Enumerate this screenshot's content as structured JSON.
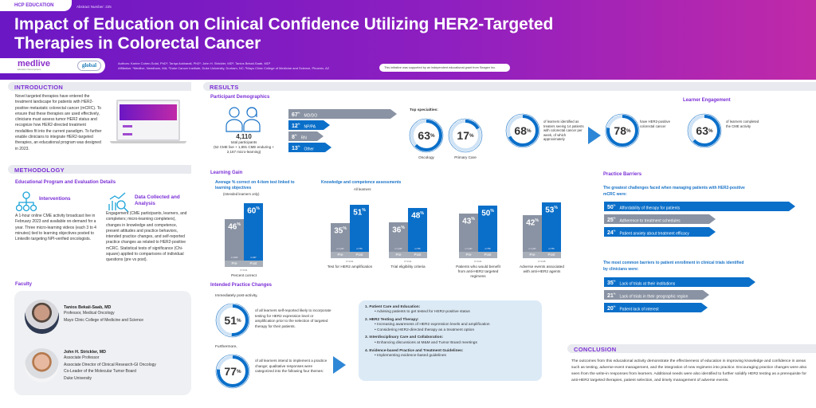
{
  "header": {
    "badge": "HCP EDUCATION",
    "abstract": "Abstract Number: 225",
    "title": "Impact of Education on Clinical Confidence Utilizing HER2-Targeted Therapies in Colorectal Cancer",
    "logo_medlive": "medlive",
    "logo_medlive_tagline": "Education that empowers",
    "logo_global": "global",
    "authors": "Authors: Karine Cohen-Solal, PhD¹; Tariqa Ackbarali, PhD¹; John H. Strickler, MD²; Tanios Bekaii-Saab, MD³",
    "affiliation": "Affiliation: ¹Medlive, Needham, MA; ²Duke Cancer Institute, Duke University, Durham, NC; ³Mayo Clinic College of Medicine and Science, Phoenix, AZ",
    "grant": "This initiative was supported by an independent educational grant from Seagen Inc."
  },
  "introduction": {
    "heading": "INTRODUCTION",
    "text": "Novel targeted therapies have entered the treatment landscape for patients with HER2-positive metastatic colorectal cancer (mCRC). To ensure that these therapies are used effectively, clinicians must assess tumor HER2 status and recognize how HER2-directed treatment modalities fit into the current paradigm. To further enable clinicians to integrate HER2-targeted therapies, an educational program was designed in 2023."
  },
  "methodology": {
    "heading": "METHODOLOGY",
    "subheading": "Educational Program and Evaluation Details",
    "interventions_title": "Interventions",
    "interventions_text": "A 1-hour online CME activity broadcast live in February 2023 and available on-demand for a year. Three micro-learning videos (each 3 to 4 minutes) tied to learning objectives posted to LinkedIn targeting NPI-verified oncologists.",
    "data_title": "Data Collected and Analysis",
    "data_text": "Engagement (CME participants, learners, and completers; micro-learning completers), changes in knowledge and competence, present attitudes and practice behaviors, intended practice changes, and self-reported practice changes as related to HER2-positive mCRC. Statistical tests of significance (Chi-square) applied to comparisons of individual questions (pre vs post)."
  },
  "faculty": {
    "heading": "Faculty",
    "members": [
      {
        "name": "Tanios Bekaii-Saab, MD",
        "lines": [
          "Professor, Medical Oncology",
          "Mayo Clinic College of Medicine and Science"
        ]
      },
      {
        "name": "John H. Strickler, MD",
        "lines": [
          "Associate Professor",
          "Associate Director of Clinical Research-GI Oncology",
          "Co-Leader of the Molecular Tumor Board",
          "Duke University"
        ]
      }
    ]
  },
  "results": {
    "heading": "RESULTS",
    "demographics": {
      "heading": "Participant Demographics",
      "total": "4,110",
      "total_label": "total participants",
      "breakdown": "(52 CME live + 1,891 CME enduring + 2,167 micro-learning)",
      "professions": [
        {
          "pct": 67,
          "label": "MD/DO",
          "color": "#8a93a3"
        },
        {
          "pct": 12,
          "label": "NP/PA",
          "color": "#0a6fc9"
        },
        {
          "pct": 8,
          "label": "RN",
          "color": "#8a93a3"
        },
        {
          "pct": 13,
          "label": "Other",
          "color": "#0a6fc9"
        }
      ],
      "specialties_label": "Top specialties:",
      "specialties": [
        {
          "pct": 63,
          "label": "Oncology"
        },
        {
          "pct": 17,
          "label": "Primary Care"
        }
      ],
      "treaters": {
        "pct": 68,
        "text": "of learners identified as treaters seeing 14 patients with colorectal cancer per week, of which approximately"
      },
      "her2": {
        "pct": 78,
        "text": "have HER2-positive colorectal cancer"
      }
    },
    "engagement": {
      "heading": "Learner Engagement",
      "pct": 63,
      "text": "of learners completed the CME activity"
    },
    "learning_gain": {
      "heading": "Learning Gain",
      "avg_title": "Average % correct on 4-item test linked to learning objectives",
      "avg_note": "(Intended learners only)",
      "kc_title": "Knowledge and competence assessments",
      "kc_note": "All learners"
    },
    "intended": {
      "heading": "Intended Practice Changes",
      "intro1": "Immediately post-activity,",
      "pct1": 51,
      "text1": "of all learners self-reported likely to incorporate testing for HER2 expression level or amplification prior to the selection of targeted therapy for their patients.",
      "intro2": "Furthermore,",
      "pct2": 77,
      "text2": "of all learners intend to implement a practice change; qualitative responses were categorized into the following four themes:",
      "themes": [
        {
          "title": "1.  Patient Care and Education:",
          "bullets": [
            "Advising patients to get tested for HER2-positive status"
          ]
        },
        {
          "title": "2.  HER2 Testing and Therapy:",
          "bullets": [
            "Increasing awareness of HER2 expression levels and amplification",
            "Considering HER2-directed therapy as a treatment option"
          ]
        },
        {
          "title": "3.  Interdisciplinary Care and Collaboration:",
          "bullets": [
            "Enhancing discussions at M&M and Tumor Board meetings"
          ]
        },
        {
          "title": "4.  Evidence-based Practice and Treatment Guidelines:",
          "bullets": [
            "Implementing evidence-based guidelines"
          ]
        }
      ]
    },
    "barriers": {
      "heading": "Practice Barriers",
      "q1": "The greatest challenges faced when managing patients with HER2-positive mCRC were:",
      "items1": [
        {
          "pct": 50,
          "label": "Affordability of therapy for patients",
          "color": "#0a6fc9"
        },
        {
          "pct": 25,
          "label": "Adherence to treatment schedules",
          "color": "#8a93a3"
        },
        {
          "pct": 24,
          "label": "Patient anxiety about treatment efficacy",
          "color": "#0a6fc9"
        }
      ],
      "q2": "The most common barriers to patient enrollment in clinical trials identified by clinicians were:",
      "items2": [
        {
          "pct": 35,
          "label": "Lack of trials at their institutions",
          "color": "#0a6fc9"
        },
        {
          "pct": 21,
          "label": "Lack of trials in their geographic region",
          "color": "#8a93a3"
        },
        {
          "pct": 20,
          "label": "Patient lack of interest",
          "color": "#0a6fc9"
        }
      ]
    }
  },
  "conclusion": {
    "heading": "CONCLUSION",
    "text": "The outcomes from this educational activity demonstrate the effectiveness of education in improving knowledge and confidence in areas such as testing, adverse-event management, and the integration of new regimens into practice. Encouraging practice changes were also seen from the write-in responses from learners. Additional needs were also identified to further solidify HER2 testing as a prerequisite for anti-HER2 targeted therapies, patient selection, and timely management of adverse events."
  },
  "chart_data": {
    "type": "bar",
    "categories": [
      "Percent correct",
      "Test for HER2 amplification",
      "Trial eligibility criteria",
      "Patients who would benefit from anti-HER2 targeted regimens",
      "Adverse events associated with anti-HER2 agents"
    ],
    "series": [
      {
        "name": "Pre",
        "values": [
          46,
          35,
          36,
          43,
          42
        ],
        "n": [
          "n=1930",
          "n=1,237",
          "n=1,237",
          "n=1,237",
          "n=1,237"
        ]
      },
      {
        "name": "Post",
        "values": [
          60,
          51,
          48,
          50,
          53
        ],
        "n": [
          "n=227",
          "n=776",
          "n=776",
          "n=776",
          "n=776"
        ]
      }
    ],
    "p_values": [
      "P<0.01",
      "P<0.01",
      "P<0.01",
      "P<0.01",
      "P<0.05"
    ],
    "colors": {
      "Pre": "#8a93a3",
      "Post": "#0a6fc9"
    },
    "ylabel": "% correct"
  }
}
